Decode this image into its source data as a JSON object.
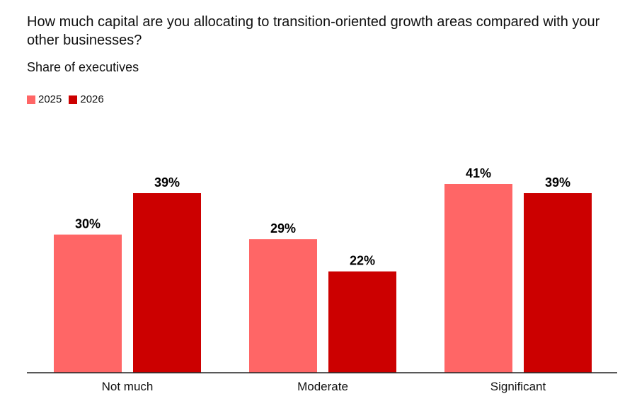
{
  "chart_data": {
    "type": "bar",
    "title": "How much capital are you allocating to transition-oriented growth areas compared with your other businesses?",
    "subtitle": "Share of executives",
    "categories": [
      "Not much",
      "Moderate",
      "Significant"
    ],
    "series": [
      {
        "name": "2025",
        "values": [
          30,
          29,
          41
        ],
        "labels": [
          "30%",
          "29%",
          "41%"
        ],
        "color": "#ff6666"
      },
      {
        "name": "2026",
        "values": [
          39,
          22,
          39
        ],
        "labels": [
          "39%",
          "22%",
          "39%"
        ],
        "color": "#cc0000"
      }
    ],
    "ylim": [
      0,
      41
    ],
    "grid": false,
    "legend_position": "top-left"
  }
}
